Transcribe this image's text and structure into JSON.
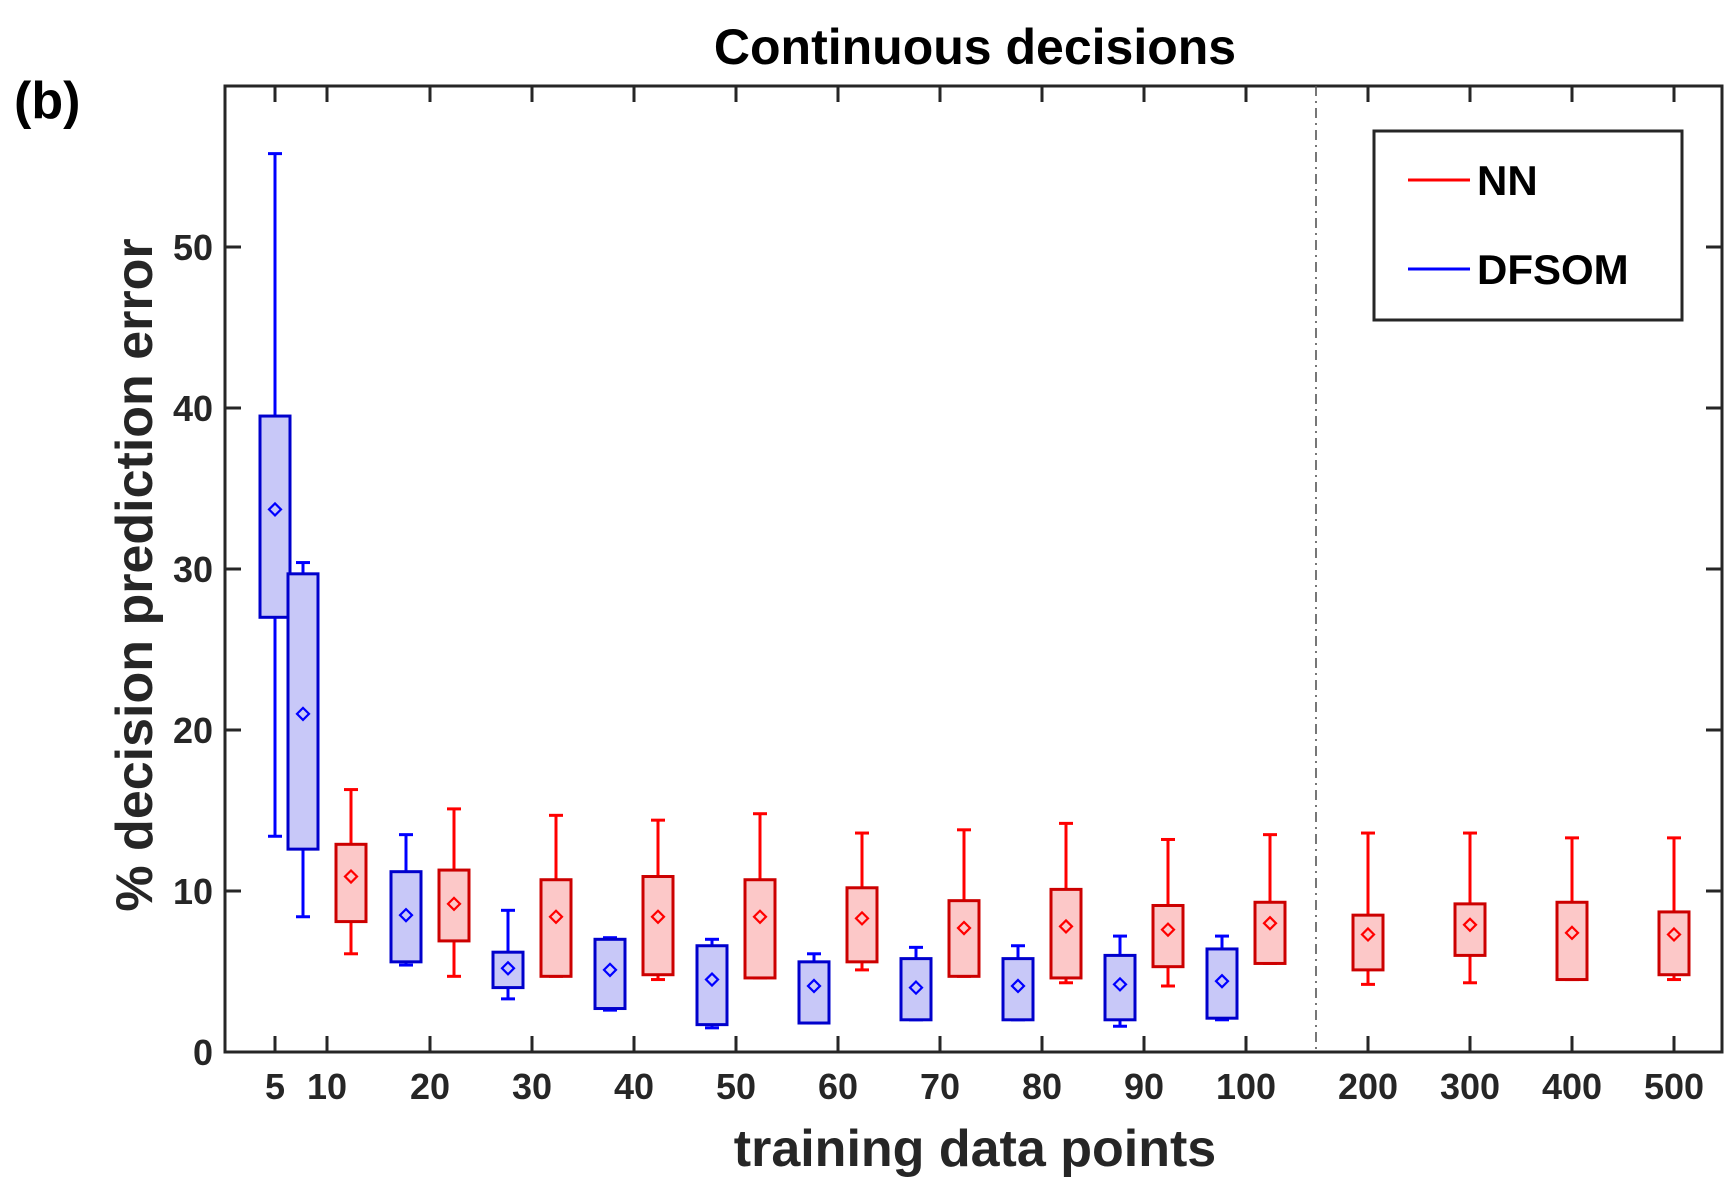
{
  "chart_data": {
    "type": "box",
    "panel_label": "(b)",
    "title": "Continuous decisions",
    "xlabel": "training data points",
    "ylabel": "% decision prediction error",
    "ylim": [
      0,
      60
    ],
    "yticks": [
      0,
      10,
      20,
      30,
      40,
      50
    ],
    "categories": [
      "5",
      "10",
      "20",
      "30",
      "40",
      "50",
      "60",
      "70",
      "80",
      "90",
      "100",
      "200",
      "300",
      "400",
      "500"
    ],
    "separator_after": "100",
    "legend": {
      "position": "top-right",
      "entries": [
        {
          "name": "NN",
          "color": "#ff0000"
        },
        {
          "name": "DFSOM",
          "color": "#0000ff"
        }
      ]
    },
    "series": [
      {
        "name": "DFSOM",
        "line_color": "#0000ff",
        "fill_color": "#c8c8f8",
        "box_edge_color": "#0000cc",
        "boxes": [
          {
            "x": "5",
            "min": 13.4,
            "q1": 27.0,
            "q3": 39.5,
            "max": 55.8,
            "mean": 33.7
          },
          {
            "x": "10",
            "min": 8.4,
            "q1": 12.6,
            "q3": 29.7,
            "max": 30.4,
            "mean": 21.0
          },
          {
            "x": "20",
            "min": 5.4,
            "q1": 5.6,
            "q3": 11.2,
            "max": 13.5,
            "mean": 8.5
          },
          {
            "x": "30",
            "min": 3.3,
            "q1": 4.0,
            "q3": 6.2,
            "max": 8.8,
            "mean": 5.2
          },
          {
            "x": "40",
            "min": 2.6,
            "q1": 2.7,
            "q3": 7.0,
            "max": 7.1,
            "mean": 5.1
          },
          {
            "x": "50",
            "min": 1.5,
            "q1": 1.7,
            "q3": 6.6,
            "max": 7.0,
            "mean": 4.5
          },
          {
            "x": "60",
            "min": 1.8,
            "q1": 1.8,
            "q3": 5.6,
            "max": 6.1,
            "mean": 4.1
          },
          {
            "x": "70",
            "min": 2.0,
            "q1": 2.0,
            "q3": 5.8,
            "max": 6.5,
            "mean": 4.0
          },
          {
            "x": "80",
            "min": 2.0,
            "q1": 2.0,
            "q3": 5.8,
            "max": 6.6,
            "mean": 4.1
          },
          {
            "x": "90",
            "min": 1.6,
            "q1": 2.0,
            "q3": 6.0,
            "max": 7.2,
            "mean": 4.2
          },
          {
            "x": "100",
            "min": 2.0,
            "q1": 2.1,
            "q3": 6.4,
            "max": 7.2,
            "mean": 4.4
          }
        ]
      },
      {
        "name": "NN",
        "line_color": "#ff0000",
        "fill_color": "#fcc8c8",
        "box_edge_color": "#cc0000",
        "boxes": [
          {
            "x": "10",
            "min": 6.1,
            "q1": 8.1,
            "q3": 12.9,
            "max": 16.3,
            "mean": 10.9
          },
          {
            "x": "20",
            "min": 4.7,
            "q1": 6.9,
            "q3": 11.3,
            "max": 15.1,
            "mean": 9.2
          },
          {
            "x": "30",
            "min": 4.7,
            "q1": 4.7,
            "q3": 10.7,
            "max": 14.7,
            "mean": 8.4
          },
          {
            "x": "40",
            "min": 4.5,
            "q1": 4.8,
            "q3": 10.9,
            "max": 14.4,
            "mean": 8.4
          },
          {
            "x": "50",
            "min": 4.6,
            "q1": 4.6,
            "q3": 10.7,
            "max": 14.8,
            "mean": 8.4
          },
          {
            "x": "60",
            "min": 5.1,
            "q1": 5.6,
            "q3": 10.2,
            "max": 13.6,
            "mean": 8.3
          },
          {
            "x": "70",
            "min": 4.7,
            "q1": 4.7,
            "q3": 9.4,
            "max": 13.8,
            "mean": 7.7
          },
          {
            "x": "80",
            "min": 4.3,
            "q1": 4.6,
            "q3": 10.1,
            "max": 14.2,
            "mean": 7.8
          },
          {
            "x": "90",
            "min": 4.1,
            "q1": 5.3,
            "q3": 9.1,
            "max": 13.2,
            "mean": 7.6
          },
          {
            "x": "100",
            "min": 5.5,
            "q1": 5.5,
            "q3": 9.3,
            "max": 13.5,
            "mean": 8.0
          },
          {
            "x": "200",
            "min": 4.2,
            "q1": 5.1,
            "q3": 8.5,
            "max": 13.6,
            "mean": 7.3
          },
          {
            "x": "300",
            "min": 4.3,
            "q1": 6.0,
            "q3": 9.2,
            "max": 13.6,
            "mean": 7.9
          },
          {
            "x": "400",
            "min": 4.5,
            "q1": 4.5,
            "q3": 9.3,
            "max": 13.3,
            "mean": 7.4
          },
          {
            "x": "500",
            "min": 4.5,
            "q1": 4.8,
            "q3": 8.7,
            "max": 13.3,
            "mean": 7.3
          }
        ]
      }
    ]
  }
}
